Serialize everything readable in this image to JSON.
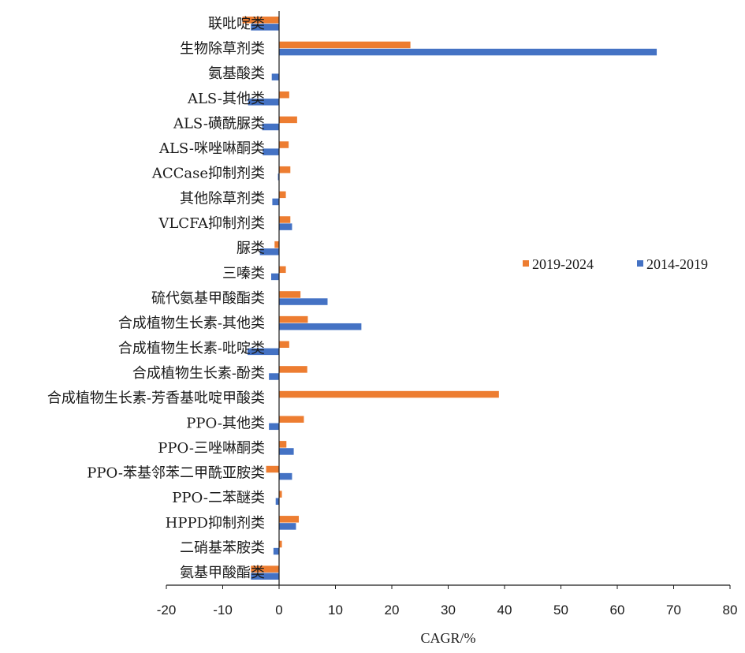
{
  "chart_data": {
    "type": "bar",
    "orientation": "horizontal",
    "xlabel": "CAGR/%",
    "xlim": [
      -20,
      80
    ],
    "xticks": [
      -20,
      -10,
      0,
      10,
      20,
      30,
      40,
      50,
      60,
      70,
      80
    ],
    "xtick_labels": [
      "-20",
      "-10",
      "0",
      "10",
      "20",
      "30",
      "40",
      "50",
      "60",
      "70",
      "80"
    ],
    "legend_position": "right-middle",
    "grid": false,
    "categories": [
      "联吡啶类",
      "生物除草剂类",
      "氨基酸类",
      "ALS-其他类",
      "ALS-磺酰脲类",
      "ALS-咪唑啉酮类",
      "ACCase抑制剂类",
      "其他除草剂类",
      "VLCFA抑制剂类",
      "脲类",
      "三嗪类",
      "硫代氨基甲酸酯类",
      "合成植物生长素-其他类",
      "合成植物生长素-吡啶类",
      "合成植物生长素-酚类",
      "合成植物生长素-芳香基吡啶甲酸类",
      "PPO-其他类",
      "PPO-三唑啉酮类",
      "PPO-苯基邻苯二甲酰亚胺类",
      "PPO-二苯醚类",
      "HPPD抑制剂类",
      "二硝基苯胺类",
      "氨基甲酸酯类"
    ],
    "series": [
      {
        "name": "2019-2024",
        "color": "#ed7d31",
        "values": [
          -6.5,
          23.3,
          0,
          1.8,
          3.2,
          1.7,
          2.0,
          1.2,
          2.0,
          -0.8,
          1.2,
          3.8,
          5.1,
          1.8,
          5.0,
          39.0,
          4.4,
          1.3,
          -2.3,
          0.5,
          3.5,
          0.5,
          -5.0
        ]
      },
      {
        "name": "2014-2019",
        "color": "#4472c4",
        "values": [
          -5.0,
          67.0,
          -1.3,
          -5.5,
          -3.0,
          -2.9,
          -0.2,
          -1.2,
          2.3,
          -3.4,
          -1.4,
          8.6,
          14.6,
          -5.6,
          -1.8,
          0,
          -1.8,
          2.6,
          2.3,
          -0.6,
          3.0,
          -1.0,
          -5.0
        ]
      }
    ]
  }
}
